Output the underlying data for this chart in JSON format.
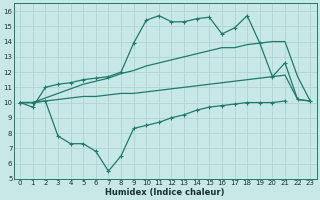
{
  "xlabel": "Humidex (Indice chaleur)",
  "bg_color": "#c8e8e8",
  "line_color": "#1e7a6a",
  "grid_color": "#b0d4d0",
  "xlim": [
    -0.5,
    23.5
  ],
  "ylim": [
    5,
    16.5
  ],
  "xticks": [
    0,
    1,
    2,
    3,
    4,
    5,
    6,
    7,
    8,
    9,
    10,
    11,
    12,
    13,
    14,
    15,
    16,
    17,
    18,
    19,
    20,
    21,
    22,
    23
  ],
  "yticks": [
    5,
    6,
    7,
    8,
    9,
    10,
    11,
    12,
    13,
    14,
    15,
    16
  ],
  "line_top_x": [
    0,
    1,
    2,
    3,
    4,
    5,
    6,
    7,
    8,
    9,
    10,
    11,
    12,
    13,
    14,
    15,
    16,
    17,
    18,
    19,
    20,
    21,
    22,
    23
  ],
  "line_top_y": [
    10.0,
    9.7,
    11.0,
    11.2,
    11.3,
    11.5,
    11.6,
    11.7,
    12.0,
    13.9,
    15.4,
    15.7,
    15.3,
    15.3,
    15.5,
    15.6,
    14.5,
    14.9,
    15.7,
    13.9,
    11.7,
    12.6,
    10.2,
    10.1
  ],
  "line_upper_x": [
    0,
    1,
    2,
    3,
    4,
    5,
    6,
    7,
    8,
    9,
    10,
    11,
    12,
    13,
    14,
    15,
    16,
    17,
    18,
    19,
    20,
    21,
    22,
    23
  ],
  "line_upper_y": [
    10.0,
    10.0,
    10.3,
    10.6,
    10.9,
    11.2,
    11.4,
    11.6,
    11.9,
    12.1,
    12.4,
    12.6,
    12.8,
    13.0,
    13.2,
    13.4,
    13.6,
    13.6,
    13.8,
    13.9,
    14.0,
    14.0,
    11.7,
    10.1
  ],
  "line_lower_x": [
    0,
    1,
    2,
    3,
    4,
    5,
    6,
    7,
    8,
    9,
    10,
    11,
    12,
    13,
    14,
    15,
    16,
    17,
    18,
    19,
    20,
    21,
    22,
    23
  ],
  "line_lower_y": [
    10.0,
    10.0,
    10.1,
    10.2,
    10.3,
    10.4,
    10.4,
    10.5,
    10.6,
    10.6,
    10.7,
    10.8,
    10.9,
    11.0,
    11.1,
    11.2,
    11.3,
    11.4,
    11.5,
    11.6,
    11.7,
    11.8,
    10.2,
    10.1
  ],
  "line_bot_x": [
    0,
    1,
    2,
    3,
    4,
    5,
    6,
    7,
    8,
    9,
    10,
    11,
    12,
    13,
    14,
    15,
    16,
    17,
    18,
    19,
    20,
    21
  ],
  "line_bot_y": [
    10.0,
    10.0,
    10.1,
    7.8,
    7.3,
    7.3,
    6.8,
    5.5,
    6.5,
    8.3,
    8.5,
    8.7,
    9.0,
    9.2,
    9.5,
    9.7,
    9.8,
    9.9,
    10.0,
    10.0,
    10.0,
    10.1
  ]
}
